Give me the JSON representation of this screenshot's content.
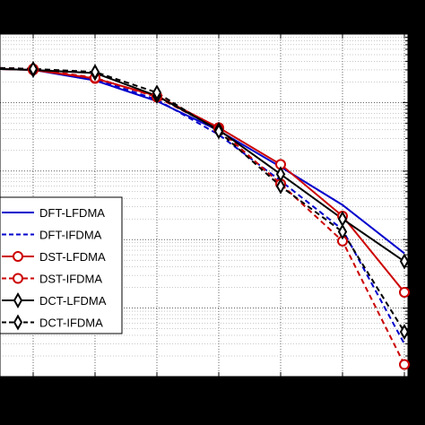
{
  "chart_data": {
    "type": "line",
    "x": [
      0,
      1,
      2,
      3,
      4,
      5,
      6
    ],
    "y_scale": "log",
    "grid": true,
    "legend_position": "lower-left",
    "series": [
      {
        "name": "DFT-LFDMA",
        "color": "#0000cc",
        "dash": "solid",
        "marker": "none",
        "values": [
          0.3,
          0.21,
          0.105,
          0.039,
          0.0115,
          0.0032,
          0.00063
        ]
      },
      {
        "name": "DFT-IFDMA",
        "color": "#0000cc",
        "dash": "dashed",
        "marker": "none",
        "values": [
          0.31,
          0.22,
          0.11,
          0.034,
          0.0072,
          0.0014,
          3e-05
        ]
      },
      {
        "name": "DST-LFDMA",
        "color": "#cc0000",
        "dash": "solid",
        "marker": "circle",
        "values": [
          0.3,
          0.225,
          0.125,
          0.043,
          0.0125,
          0.0022,
          0.00017
        ]
      },
      {
        "name": "DST-IFDMA",
        "color": "#cc0000",
        "dash": "dashed",
        "marker": "circle",
        "values": [
          0.31,
          0.23,
          0.12,
          0.041,
          0.0065,
          0.00095,
          1.5e-05
        ]
      },
      {
        "name": "DCT-LFDMA",
        "color": "#000000",
        "dash": "solid",
        "marker": "diamond",
        "values": [
          0.3,
          0.27,
          0.125,
          0.04,
          0.009,
          0.002,
          0.00048
        ]
      },
      {
        "name": "DCT-IFDMA",
        "color": "#000000",
        "dash": "dashed",
        "marker": "diamond",
        "values": [
          0.31,
          0.28,
          0.14,
          0.038,
          0.006,
          0.0013,
          4.5e-05
        ]
      }
    ]
  }
}
